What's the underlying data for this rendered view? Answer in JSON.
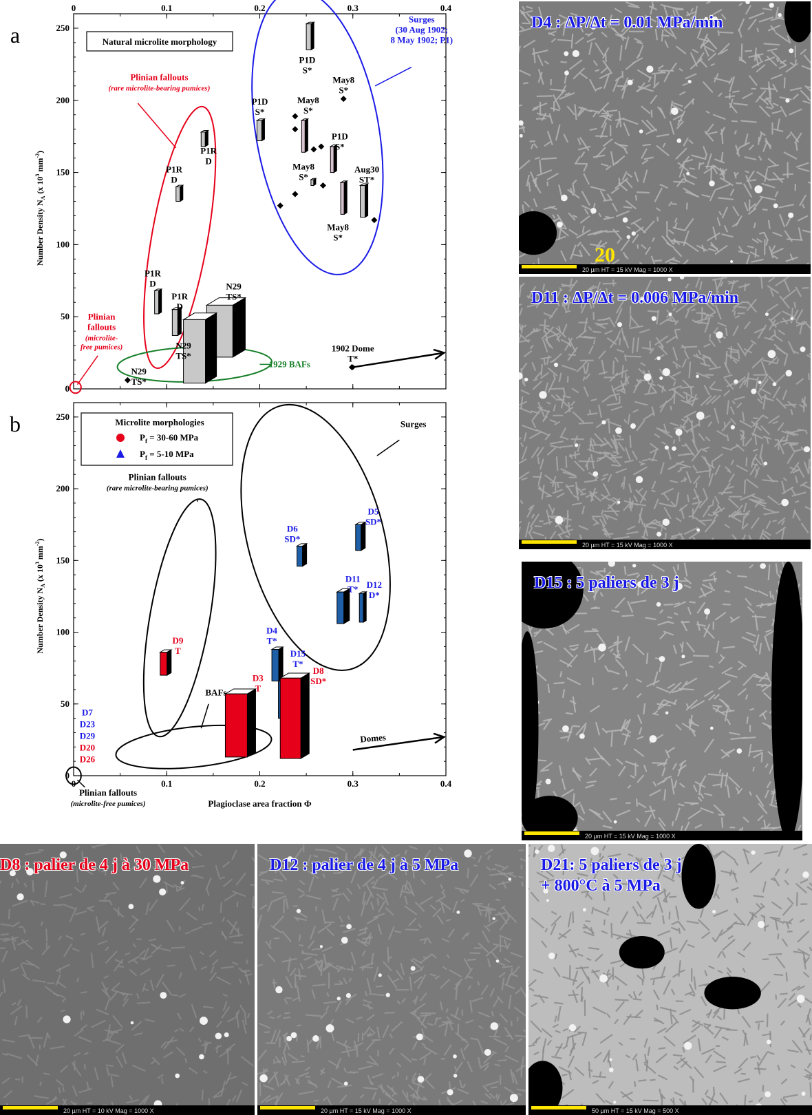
{
  "colors": {
    "red": "#e6001a",
    "blue": "#1a1ae6",
    "green": "#18802a",
    "panel_red": "#e6001a",
    "panel_blue": "#1f5fa8",
    "prism_gray": "#c8c8c8",
    "prism_pink": "#d8c4d0"
  },
  "top_tick_labels": [
    "0",
    "0.1",
    "0.2",
    "0.3",
    "0.4"
  ],
  "chart_data": [
    {
      "type": "scatter",
      "panel_letter": "a",
      "title": "Natural microlite morphology",
      "xlabel": "",
      "ylabel": "Number Density N",
      "ylabel_sub": "A",
      "ylabel_unit": " (x 10",
      "ylabel_exp": "3",
      "ylabel_unit2": " mm",
      "ylabel_exp2": "-2",
      "ylabel_close": ")",
      "xlim": [
        0,
        0.4
      ],
      "ylim": [
        0,
        260
      ],
      "x_ticks": [
        "0",
        "0.1",
        "0.2",
        "0.3",
        "0.4"
      ],
      "y_ticks": [
        "0",
        "50",
        "100",
        "150",
        "200",
        "250"
      ],
      "prisms": [
        {
          "x": 0.11,
          "y": 140,
          "h": 10,
          "w": 6,
          "d": 4,
          "color": "gray",
          "label": [
            "P1R",
            "D"
          ],
          "lx": 0.108,
          "ly": 150
        },
        {
          "x": 0.137,
          "y": 178,
          "h": 10,
          "w": 6,
          "d": 4,
          "color": "gray",
          "label": [
            "P1R",
            "D"
          ],
          "lx": 0.145,
          "ly": 163
        },
        {
          "x": 0.087,
          "y": 68,
          "h": 16,
          "w": 6,
          "d": 4,
          "color": "gray",
          "label": [
            "P1R",
            "D"
          ],
          "lx": 0.085,
          "ly": 78
        },
        {
          "x": 0.106,
          "y": 55,
          "h": 18,
          "w": 8,
          "d": 5,
          "color": "gray",
          "label": [
            "P1R",
            "D"
          ],
          "lx": 0.114,
          "ly": 62
        },
        {
          "x": 0.25,
          "y": 253,
          "h": 18,
          "w": 7,
          "d": 4,
          "color": "gray",
          "label": [
            "P1D",
            "S*"
          ],
          "lx": 0.251,
          "ly": 226
        },
        {
          "x": 0.197,
          "y": 186,
          "h": 14,
          "w": 7,
          "d": 4,
          "color": "gray",
          "label": [
            "P1D",
            "S*"
          ],
          "lx": 0.2,
          "ly": 197
        },
        {
          "x": 0.245,
          "y": 186,
          "h": 22,
          "w": 5,
          "d": 4,
          "color": "pink",
          "label": [
            "May8",
            "S*"
          ],
          "lx": 0.252,
          "ly": 198
        },
        {
          "x": 0.276,
          "y": 168,
          "h": 18,
          "w": 5,
          "d": 4,
          "color": "pink",
          "label": [
            "P1D",
            "S*"
          ],
          "lx": 0.286,
          "ly": 173
        },
        {
          "x": 0.287,
          "y": 143,
          "h": 22,
          "w": 5,
          "d": 4,
          "color": "pink",
          "label": [
            "May8",
            "S*"
          ],
          "lx": 0.284,
          "ly": 110
        },
        {
          "x": 0.308,
          "y": 141,
          "h": 22,
          "w": 7,
          "d": 4,
          "color": "gray",
          "label": [
            "Aug30",
            "ST*"
          ],
          "lx": 0.315,
          "ly": 150
        },
        {
          "x": 0.255,
          "y": 145,
          "h": 4,
          "w": 4,
          "d": 3,
          "color": "gray",
          "label": [
            "May8",
            "S*"
          ],
          "lx": 0.247,
          "ly": 152
        },
        {
          "x": 0.143,
          "y": 58,
          "h": 36,
          "w": 38,
          "d": 18,
          "color": "gray",
          "label": [
            "N29",
            "TS*"
          ],
          "lx": 0.172,
          "ly": 69
        },
        {
          "x": 0.118,
          "y": 48,
          "h": 44,
          "w": 32,
          "d": 16,
          "color": "gray",
          "label": [
            "N29",
            "TS*"
          ],
          "lx": 0.118,
          "ly": 28
        }
      ],
      "diamonds": [
        {
          "x": 0.238,
          "y": 189
        },
        {
          "x": 0.238,
          "y": 180
        },
        {
          "x": 0.258,
          "y": 166
        },
        {
          "x": 0.266,
          "y": 168
        },
        {
          "x": 0.238,
          "y": 135
        },
        {
          "x": 0.268,
          "y": 141
        },
        {
          "x": 0.222,
          "y": 127
        },
        {
          "x": 0.323,
          "y": 117
        },
        {
          "x": 0.29,
          "y": 201
        },
        {
          "x": 0.058,
          "y": 6
        },
        {
          "x": 0.299,
          "y": 15
        }
      ],
      "plain_labels": [
        {
          "text": [
            "May8",
            "S*"
          ],
          "x": 0.29,
          "y": 212
        },
        {
          "text": [
            "N29",
            "TS*"
          ],
          "x": 0.07,
          "y": 10
        },
        {
          "text": [
            "1902 Dome",
            "T*"
          ],
          "x": 0.3,
          "y": 26
        }
      ],
      "regions": [
        {
          "name": "Surges",
          "color": "blue",
          "cx": 0.262,
          "cy": 178,
          "rx": 0.066,
          "ry": 100,
          "rot": -10,
          "label": [
            "Surges",
            "(30 Aug 1902;",
            "8 May 1902; P1)"
          ],
          "label_style": "bold",
          "lx": 0.374,
          "ly": 254,
          "leader": [
            [
              0.363,
              223
            ],
            [
              0.324,
              210
            ]
          ]
        },
        {
          "name": "Plinian fallouts rare",
          "color": "red",
          "cx": 0.114,
          "cy": 105,
          "rx": 0.03,
          "ry": 92,
          "rot": 10,
          "label": [
            "Plinian fallouts"
          ],
          "sub": [
            "(rare microlite-bearing pumices)"
          ],
          "lx": 0.092,
          "ly": 214,
          "leader": [
            [
              0.069,
              198
            ],
            [
              0.11,
              167
            ]
          ]
        },
        {
          "name": "1929 BAFs",
          "color": "green",
          "cx": 0.13,
          "cy": 17,
          "rx": 0.083,
          "ry": 12,
          "rot": -2,
          "label": [
            "1929 BAFs"
          ],
          "label_style": "bold",
          "lx": 0.232,
          "ly": 15,
          "leader": [
            [
              0.2,
              17
            ],
            [
              0.213,
              17
            ]
          ]
        },
        {
          "name": "Plinian fallouts free",
          "color": "red",
          "cx": 0.002,
          "cy": 1,
          "rx": 0.006,
          "ry": 4,
          "rot": 0,
          "label": [
            "Plinian",
            "fallouts"
          ],
          "sub": [
            "(microlite-",
            "free pumices)"
          ],
          "lx": 0.03,
          "ly": 48,
          "leader": [
            [
              0.026,
              23
            ],
            [
              0.004,
              3
            ]
          ]
        }
      ],
      "arrow": {
        "from": [
          0.3,
          15
        ],
        "to": [
          0.398,
          25
        ]
      }
    },
    {
      "type": "scatter",
      "panel_letter": "b",
      "title": "",
      "xlabel": "Plagioclase area fraction Φ",
      "ylabel": "Number Density N",
      "ylabel_sub": "A",
      "ylabel_unit": " (x 10",
      "ylabel_exp": "3",
      "ylabel_unit2": " mm",
      "ylabel_exp2": "-2",
      "ylabel_close": ")",
      "xlim": [
        0,
        0.4
      ],
      "ylim": [
        0,
        260
      ],
      "x_ticks": [
        "0",
        "0.1",
        "0.2",
        "0.3",
        "0.4"
      ],
      "y_ticks": [
        "0",
        "50",
        "100",
        "150",
        "200",
        "250"
      ],
      "legend": {
        "title": "Microlite morphologies",
        "items": [
          {
            "marker": "circle",
            "color": "red",
            "label_pre": "P",
            "label_sub": "f",
            "label_post": " = 30-60 MPa"
          },
          {
            "marker": "triangle",
            "color": "blue",
            "label_pre": "P",
            "label_sub": "f",
            "label_post": " = 5-10 MPa"
          }
        ]
      },
      "prisms": [
        {
          "x": 0.093,
          "y": 86,
          "h": 16,
          "w": 10,
          "d": 6,
          "color": "red",
          "label": [
            "D9",
            "T"
          ],
          "lx": 0.112,
          "ly": 92,
          "lcolor": "red"
        },
        {
          "x": 0.24,
          "y": 160,
          "h": 14,
          "w": 8,
          "d": 6,
          "color": "blue",
          "label": [
            "D6",
            "SD*"
          ],
          "lx": 0.235,
          "ly": 170,
          "lcolor": "blue"
        },
        {
          "x": 0.303,
          "y": 175,
          "h": 18,
          "w": 8,
          "d": 6,
          "color": "blue",
          "label": [
            "D5",
            "SD*"
          ],
          "lx": 0.322,
          "ly": 182,
          "lcolor": "blue"
        },
        {
          "x": 0.283,
          "y": 128,
          "h": 22,
          "w": 10,
          "d": 8,
          "color": "blue",
          "label": [
            "D11",
            "T*"
          ],
          "lx": 0.3,
          "ly": 135,
          "lcolor": "blue"
        },
        {
          "x": 0.307,
          "y": 127,
          "h": 20,
          "w": 6,
          "d": 4,
          "color": "blue",
          "label": [
            "D12",
            "D*"
          ],
          "lx": 0.323,
          "ly": 131,
          "lcolor": "blue"
        },
        {
          "x": 0.213,
          "y": 88,
          "h": 22,
          "w": 10,
          "d": 6,
          "color": "blue",
          "label": [
            "D4",
            "T*"
          ],
          "lx": 0.213,
          "ly": 99,
          "lcolor": "blue"
        },
        {
          "x": 0.22,
          "y": 66,
          "h": 26,
          "w": 10,
          "d": 6,
          "color": "blue",
          "label": [
            "D15",
            "T*"
          ],
          "lx": 0.241,
          "ly": 83,
          "lcolor": "blue"
        },
        {
          "x": 0.163,
          "y": 57,
          "h": 44,
          "w": 32,
          "d": 12,
          "color": "red",
          "label": [
            "D3",
            "T"
          ],
          "lx": 0.198,
          "ly": 66,
          "lcolor": "red"
        },
        {
          "x": 0.222,
          "y": 68,
          "h": 56,
          "w": 30,
          "d": 12,
          "color": "red",
          "label": [
            "D8",
            "SD*"
          ],
          "lx": 0.263,
          "ly": 71,
          "lcolor": "red"
        }
      ],
      "stacked_labels": [
        {
          "text": "D7",
          "color": "blue"
        },
        {
          "text": "D23",
          "color": "blue"
        },
        {
          "text": "D29",
          "color": "blue"
        },
        {
          "text": "D20",
          "color": "red"
        },
        {
          "text": "D26",
          "color": "red"
        }
      ],
      "regions": [
        {
          "name": "Surges",
          "color": "black",
          "cx": 0.26,
          "cy": 166,
          "rx": 0.073,
          "ry": 95,
          "rot": -15,
          "label": [
            "Surges"
          ],
          "label_style": "bold",
          "lx": 0.365,
          "ly": 243,
          "leader": [
            [
              0.35,
              234
            ],
            [
              0.326,
              223
            ]
          ]
        },
        {
          "name": "Plinian fallouts rare",
          "color": "black",
          "cx": 0.114,
          "cy": 110,
          "rx": 0.032,
          "ry": 84,
          "rot": 10,
          "label": [
            "Plinian fallouts"
          ],
          "sub": [
            "(rare microlite-bearing pumices)"
          ],
          "lx": 0.09,
          "ly": 206,
          "leader": [
            [
              0.133,
              192
            ],
            [
              0.133,
              191
            ]
          ]
        },
        {
          "name": "BAFs",
          "color": "black",
          "cx": 0.129,
          "cy": 20,
          "rx": 0.084,
          "ry": 14,
          "rot": -6,
          "label": [
            "BAFs"
          ],
          "label_style": "bold",
          "lx": 0.153,
          "ly": 56,
          "leader": [
            [
              0.145,
              50
            ],
            [
              0.137,
              33
            ]
          ]
        },
        {
          "name": "Plinian fallouts free",
          "color": "black",
          "cx": 0.0,
          "cy": 0,
          "rx": 0.008,
          "ry": 6,
          "rot": 0,
          "label": [
            "Plinian fallouts"
          ],
          "sub": [
            "(microlite-free pumices)"
          ],
          "lx": 0.037,
          "ly": -14,
          "leader": [
            [
              0.012,
              -8
            ],
            [
              0.004,
              -3
            ]
          ]
        }
      ],
      "arrow": {
        "from": [
          0.3,
          18
        ],
        "to": [
          0.398,
          27
        ],
        "label": "Domes",
        "lx": 0.322,
        "ly": 24
      }
    }
  ],
  "panels": {
    "d4": {
      "caption": "D4 : ΔP/Δt = 0.01 MPa/min",
      "caption_color": "blue",
      "meta": "20 µm   HT = 15 kV   Mag = 1000 X",
      "scale_number": "20"
    },
    "d11": {
      "caption": "D11 : ΔP/Δt = 0.006 MPa/min",
      "caption_color": "blue",
      "meta": "20 µm   HT = 15 kV   Mag = 1000 X"
    },
    "d15": {
      "caption": "D15 : 5 paliers de 3 j",
      "caption_color": "blue",
      "meta": "20 µm   HT = 15 kV   Mag =  1000 X"
    },
    "d8": {
      "caption": "D8 : palier de 4 j à 30 MPa",
      "caption_color": "red",
      "meta": "20 µm   HT = 10 kV   Mag = 1000 X"
    },
    "d12": {
      "caption": "D12 : palier de 4 j à 5 MPa",
      "caption_color": "blue",
      "meta": "20 µm   HT =  15 kV   Mag =  1000 X"
    },
    "d21": {
      "caption_line1": "D21: 5 paliers de 3 j",
      "caption_line2": "+ 800°C à 5 MPa",
      "caption_color": "blue",
      "meta": "50 µm   HT = 15 kV   Mag = 500 X"
    }
  }
}
